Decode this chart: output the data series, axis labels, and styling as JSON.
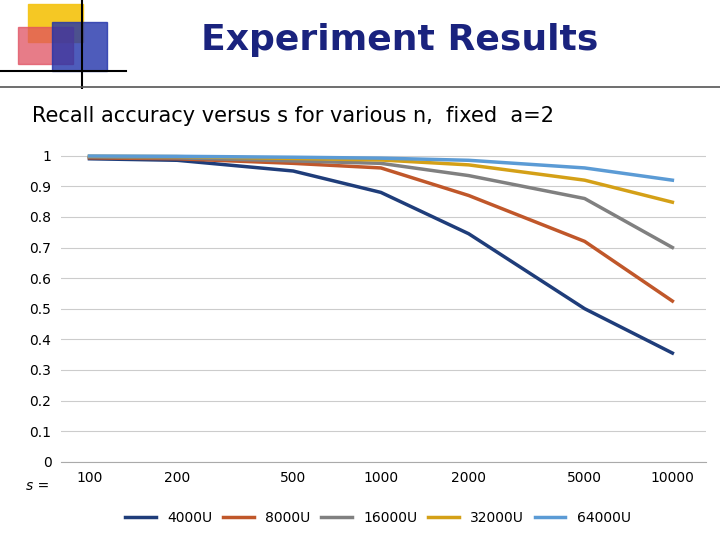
{
  "title": "Experiment Results",
  "subtitle": "Recall accuracy versus s for various n,  fixed  a=2",
  "xlabel": "s = ",
  "x_ticks": [
    100,
    200,
    500,
    1000,
    2000,
    5000,
    10000
  ],
  "ylim": [
    0,
    1.05
  ],
  "yticks": [
    0,
    0.1,
    0.2,
    0.3,
    0.4,
    0.5,
    0.6,
    0.7,
    0.8,
    0.9,
    1
  ],
  "background_color": "#ffffff",
  "series": [
    {
      "label": "4000U",
      "color": "#1f3d7a",
      "x": [
        100,
        200,
        500,
        1000,
        2000,
        5000,
        10000
      ],
      "y": [
        0.99,
        0.985,
        0.95,
        0.88,
        0.745,
        0.5,
        0.355
      ]
    },
    {
      "label": "8000U",
      "color": "#c0572a",
      "x": [
        100,
        200,
        500,
        1000,
        2000,
        5000,
        10000
      ],
      "y": [
        0.993,
        0.99,
        0.975,
        0.96,
        0.87,
        0.72,
        0.525
      ]
    },
    {
      "label": "16000U",
      "color": "#808080",
      "x": [
        100,
        200,
        500,
        1000,
        2000,
        5000,
        10000
      ],
      "y": [
        0.996,
        0.993,
        0.983,
        0.975,
        0.935,
        0.86,
        0.7
      ]
    },
    {
      "label": "32000U",
      "color": "#d4a017",
      "x": [
        100,
        200,
        500,
        1000,
        2000,
        5000,
        10000
      ],
      "y": [
        0.998,
        0.997,
        0.991,
        0.986,
        0.97,
        0.92,
        0.848
      ]
    },
    {
      "label": "64000U",
      "color": "#5b9bd5",
      "x": [
        100,
        200,
        500,
        1000,
        2000,
        5000,
        10000
      ],
      "y": [
        0.999,
        0.998,
        0.995,
        0.992,
        0.985,
        0.96,
        0.92
      ]
    }
  ],
  "line_width": 2.5,
  "title_fontsize": 26,
  "subtitle_fontsize": 15,
  "tick_fontsize": 10,
  "legend_fontsize": 10,
  "header_bar_color_yellow": "#f5c518",
  "header_bar_color_red": "#e05060",
  "header_bar_color_blue": "#2233aa"
}
